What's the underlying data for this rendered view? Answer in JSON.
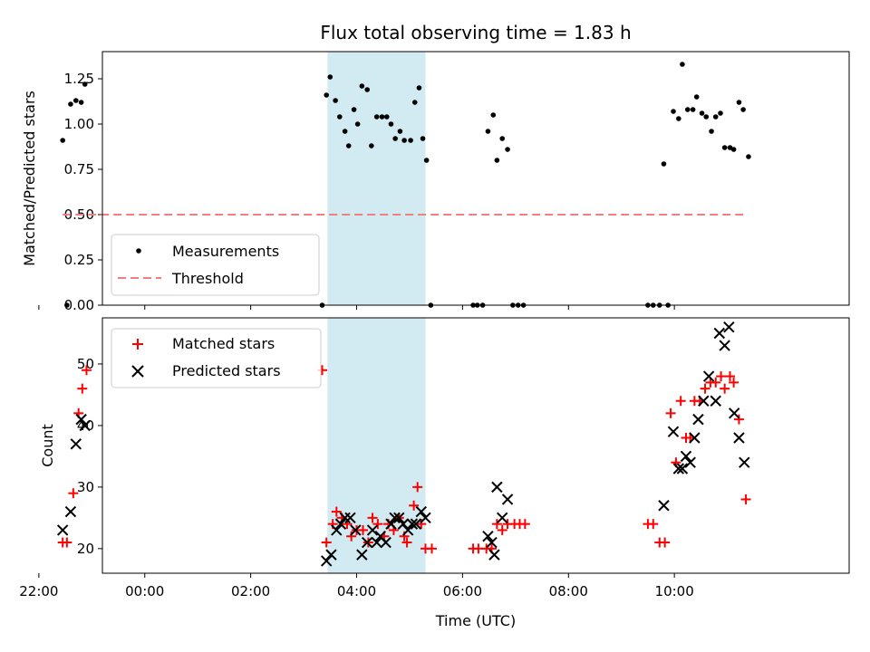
{
  "chart_data": {
    "title": "Flux total observing time = 1.83 h",
    "xlabel": "Time (UTC)",
    "x_unit": "hours since 00:00 UTC",
    "xlim": [
      -0.8,
      13.3
    ],
    "x_ticks": [
      -2,
      0,
      2,
      4,
      6,
      8,
      10
    ],
    "x_tick_labels": [
      "22:00",
      "00:00",
      "02:00",
      "04:00",
      "06:00",
      "08:00",
      "10:00"
    ],
    "highlight_span": {
      "x_start": 3.45,
      "x_end": 5.3,
      "color": "#add8e6"
    },
    "panels": [
      {
        "type": "scatter",
        "ylabel": "Matched/Predicted stars",
        "ylim": [
          0,
          1.4
        ],
        "y_ticks": [
          0,
          0.25,
          0.5,
          0.75,
          1.0,
          1.25
        ],
        "y_tick_labels": [
          "0.00",
          "0.25",
          "0.50",
          "0.75",
          "1.00",
          "1.25"
        ],
        "legend_position": "lower-left",
        "series": [
          {
            "name": "Measurements",
            "marker": "dot",
            "color": "#000000",
            "points": [
              [
                -1.55,
                0.91
              ],
              [
                -1.47,
                0.0
              ],
              [
                -1.4,
                1.11
              ],
              [
                -1.3,
                1.13
              ],
              [
                -1.2,
                1.12
              ],
              [
                -1.13,
                1.22
              ],
              [
                3.35,
                0.0
              ],
              [
                3.43,
                1.16
              ],
              [
                3.5,
                1.26
              ],
              [
                3.6,
                1.13
              ],
              [
                3.68,
                1.04
              ],
              [
                3.78,
                0.96
              ],
              [
                3.85,
                0.88
              ],
              [
                3.95,
                1.08
              ],
              [
                4.02,
                1.0
              ],
              [
                4.1,
                1.21
              ],
              [
                4.2,
                1.19
              ],
              [
                4.28,
                0.88
              ],
              [
                4.38,
                1.04
              ],
              [
                4.48,
                1.04
              ],
              [
                4.57,
                1.04
              ],
              [
                4.65,
                1.0
              ],
              [
                4.73,
                0.92
              ],
              [
                4.82,
                0.96
              ],
              [
                4.9,
                0.91
              ],
              [
                5.02,
                0.91
              ],
              [
                5.1,
                1.12
              ],
              [
                5.18,
                1.2
              ],
              [
                5.25,
                0.92
              ],
              [
                5.32,
                0.8
              ],
              [
                5.4,
                0.0
              ],
              [
                6.2,
                0.0
              ],
              [
                6.28,
                0.0
              ],
              [
                6.38,
                0.0
              ],
              [
                6.48,
                0.96
              ],
              [
                6.58,
                1.05
              ],
              [
                6.65,
                0.8
              ],
              [
                6.75,
                0.92
              ],
              [
                6.85,
                0.86
              ],
              [
                6.95,
                0.0
              ],
              [
                7.05,
                0.0
              ],
              [
                7.15,
                0.0
              ],
              [
                9.5,
                0.0
              ],
              [
                9.6,
                0.0
              ],
              [
                9.72,
                0.0
              ],
              [
                9.8,
                0.78
              ],
              [
                9.88,
                0.0
              ],
              [
                9.98,
                1.07
              ],
              [
                10.08,
                1.03
              ],
              [
                10.15,
                1.33
              ],
              [
                10.25,
                1.08
              ],
              [
                10.35,
                1.08
              ],
              [
                10.42,
                1.15
              ],
              [
                10.52,
                1.06
              ],
              [
                10.6,
                1.04
              ],
              [
                10.7,
                0.96
              ],
              [
                10.78,
                1.04
              ],
              [
                10.87,
                1.06
              ],
              [
                10.95,
                0.87
              ],
              [
                11.05,
                0.87
              ],
              [
                11.12,
                0.86
              ],
              [
                11.22,
                1.12
              ],
              [
                11.3,
                1.08
              ],
              [
                11.4,
                0.82
              ]
            ]
          },
          {
            "name": "Threshold",
            "line_style": "dashed",
            "color": "#f08080",
            "points": [
              [
                -1.55,
                0.5
              ],
              [
                11.35,
                0.5
              ]
            ]
          }
        ]
      },
      {
        "type": "scatter",
        "ylabel": "Count",
        "ylim": [
          16,
          57.5
        ],
        "y_ticks": [
          20,
          30,
          40,
          50
        ],
        "y_tick_labels": [
          "20",
          "30",
          "40",
          "50"
        ],
        "legend_position": "upper-left",
        "series": [
          {
            "name": "Matched stars",
            "marker": "plus",
            "color": "#ff0000",
            "points": [
              [
                -1.55,
                21
              ],
              [
                -1.47,
                21
              ],
              [
                -1.35,
                29
              ],
              [
                -1.25,
                42
              ],
              [
                -1.18,
                46
              ],
              [
                -1.1,
                49
              ],
              [
                3.35,
                49
              ],
              [
                3.43,
                21
              ],
              [
                3.55,
                24
              ],
              [
                3.62,
                26
              ],
              [
                3.72,
                25
              ],
              [
                3.82,
                24
              ],
              [
                3.9,
                22
              ],
              [
                4.0,
                23
              ],
              [
                4.12,
                23
              ],
              [
                4.22,
                21
              ],
              [
                4.3,
                25
              ],
              [
                4.4,
                24
              ],
              [
                4.52,
                22
              ],
              [
                4.6,
                24
              ],
              [
                4.7,
                23
              ],
              [
                4.8,
                25
              ],
              [
                4.9,
                22
              ],
              [
                4.95,
                21
              ],
              [
                5.08,
                27
              ],
              [
                5.15,
                30
              ],
              [
                5.22,
                24
              ],
              [
                5.3,
                20
              ],
              [
                5.42,
                20
              ],
              [
                6.2,
                20
              ],
              [
                6.3,
                20
              ],
              [
                6.45,
                20
              ],
              [
                6.55,
                20
              ],
              [
                6.65,
                24
              ],
              [
                6.75,
                23
              ],
              [
                6.85,
                24
              ],
              [
                6.98,
                24
              ],
              [
                7.08,
                24
              ],
              [
                7.18,
                24
              ],
              [
                9.5,
                24
              ],
              [
                9.6,
                24
              ],
              [
                9.72,
                21
              ],
              [
                9.82,
                21
              ],
              [
                9.93,
                42
              ],
              [
                10.03,
                34
              ],
              [
                10.12,
                44
              ],
              [
                10.22,
                38
              ],
              [
                10.3,
                38
              ],
              [
                10.38,
                44
              ],
              [
                10.48,
                44
              ],
              [
                10.58,
                46
              ],
              [
                10.68,
                47
              ],
              [
                10.78,
                47
              ],
              [
                10.88,
                48
              ],
              [
                10.95,
                46
              ],
              [
                11.05,
                48
              ],
              [
                11.12,
                47
              ],
              [
                11.22,
                41
              ],
              [
                11.35,
                28
              ]
            ]
          },
          {
            "name": "Predicted stars",
            "marker": "x",
            "color": "#000000",
            "points": [
              [
                -1.55,
                23
              ],
              [
                -1.4,
                26
              ],
              [
                -1.3,
                37
              ],
              [
                -1.2,
                41
              ],
              [
                -1.13,
                40
              ],
              [
                3.43,
                18
              ],
              [
                3.52,
                19
              ],
              [
                3.62,
                23
              ],
              [
                3.7,
                24
              ],
              [
                3.78,
                25
              ],
              [
                3.88,
                25
              ],
              [
                3.98,
                23
              ],
              [
                4.1,
                19
              ],
              [
                4.2,
                21
              ],
              [
                4.3,
                23
              ],
              [
                4.38,
                21
              ],
              [
                4.45,
                22
              ],
              [
                4.55,
                21
              ],
              [
                4.65,
                24
              ],
              [
                4.72,
                25
              ],
              [
                4.8,
                25
              ],
              [
                4.88,
                24
              ],
              [
                4.97,
                23
              ],
              [
                5.05,
                24
              ],
              [
                5.12,
                24
              ],
              [
                5.22,
                26
              ],
              [
                5.3,
                25
              ],
              [
                6.48,
                22
              ],
              [
                6.55,
                21
              ],
              [
                6.6,
                19
              ],
              [
                6.65,
                30
              ],
              [
                6.75,
                25
              ],
              [
                6.85,
                28
              ],
              [
                9.8,
                27
              ],
              [
                9.98,
                39
              ],
              [
                10.08,
                33
              ],
              [
                10.15,
                33
              ],
              [
                10.22,
                35
              ],
              [
                10.3,
                34
              ],
              [
                10.38,
                38
              ],
              [
                10.45,
                41
              ],
              [
                10.55,
                44
              ],
              [
                10.65,
                48
              ],
              [
                10.78,
                44
              ],
              [
                10.85,
                55
              ],
              [
                10.95,
                53
              ],
              [
                11.03,
                56
              ],
              [
                11.13,
                42
              ],
              [
                11.22,
                38
              ],
              [
                11.32,
                34
              ]
            ]
          }
        ]
      }
    ]
  }
}
